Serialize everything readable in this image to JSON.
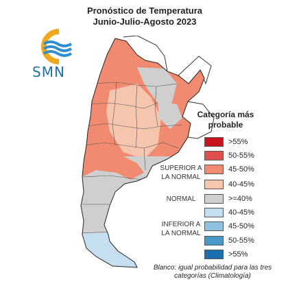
{
  "title": {
    "line1": "Pronóstico de Temperatura",
    "line2": "Junio-Julio-Agosto 2023"
  },
  "logo": {
    "text": "SMN"
  },
  "legend": {
    "title": "Categoría más probable",
    "items": [
      {
        "label": ">55%",
        "color": "#c8141e"
      },
      {
        "label": "50-55%",
        "color": "#e0504c"
      },
      {
        "label": "45-50%",
        "color": "#f08a70"
      },
      {
        "label": "40-45%",
        "color": "#f6c5ae"
      },
      {
        "label": ">=40%",
        "color": "#cfcfcf"
      },
      {
        "label": "40-45%",
        "color": "#c6dff0"
      },
      {
        "label": "45-50%",
        "color": "#8fc2df"
      },
      {
        "label": "50-55%",
        "color": "#4a97c9"
      },
      {
        "label": ">55%",
        "color": "#1c6fae"
      }
    ],
    "groups": {
      "superior": "SUPERIOR A LA NORMAL",
      "normal": "NORMAL",
      "inferior": "INFERIOR A LA NORMAL"
    }
  },
  "footnote": "Blanco: igual probabilidad para las tres categorías (Climatología)"
}
